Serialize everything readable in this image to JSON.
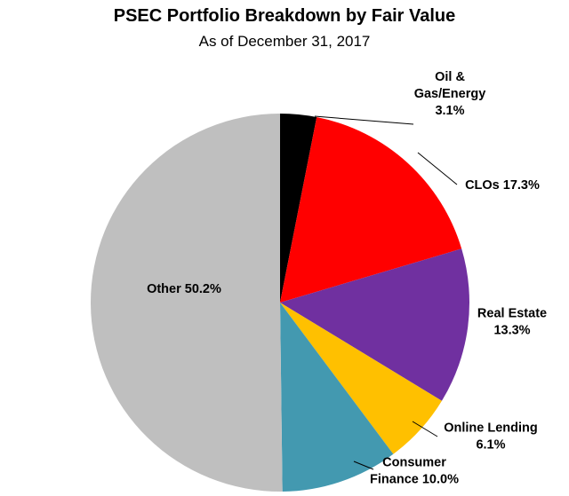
{
  "chart_data": {
    "type": "pie",
    "title": "PSEC Portfolio Breakdown by Fair Value",
    "subtitle": "As of December 31, 2017",
    "slices": [
      {
        "name": "Oil & Gas/Energy",
        "value": 3.1,
        "label_lines": [
          "Oil &",
          "Gas/Energy",
          "3.1%"
        ],
        "color": "#000000"
      },
      {
        "name": "CLOs",
        "value": 17.3,
        "label_lines": [
          "CLOs 17.3%"
        ],
        "color": "#ff0000"
      },
      {
        "name": "Real Estate",
        "value": 13.3,
        "label_lines": [
          "Real Estate",
          "13.3%"
        ],
        "color": "#7030a0"
      },
      {
        "name": "Online Lending",
        "value": 6.1,
        "label_lines": [
          "Online Lending",
          "6.1%"
        ],
        "color": "#ffc000"
      },
      {
        "name": "Consumer Finance",
        "value": 10.0,
        "label_lines": [
          "Consumer",
          "Finance 10.0%"
        ],
        "color": "#4399b0"
      },
      {
        "name": "Other",
        "value": 50.2,
        "label_lines": [
          "Other 50.2%"
        ],
        "color": "#bfbfbf"
      }
    ],
    "start": "12 o'clock",
    "direction": "clockwise"
  }
}
